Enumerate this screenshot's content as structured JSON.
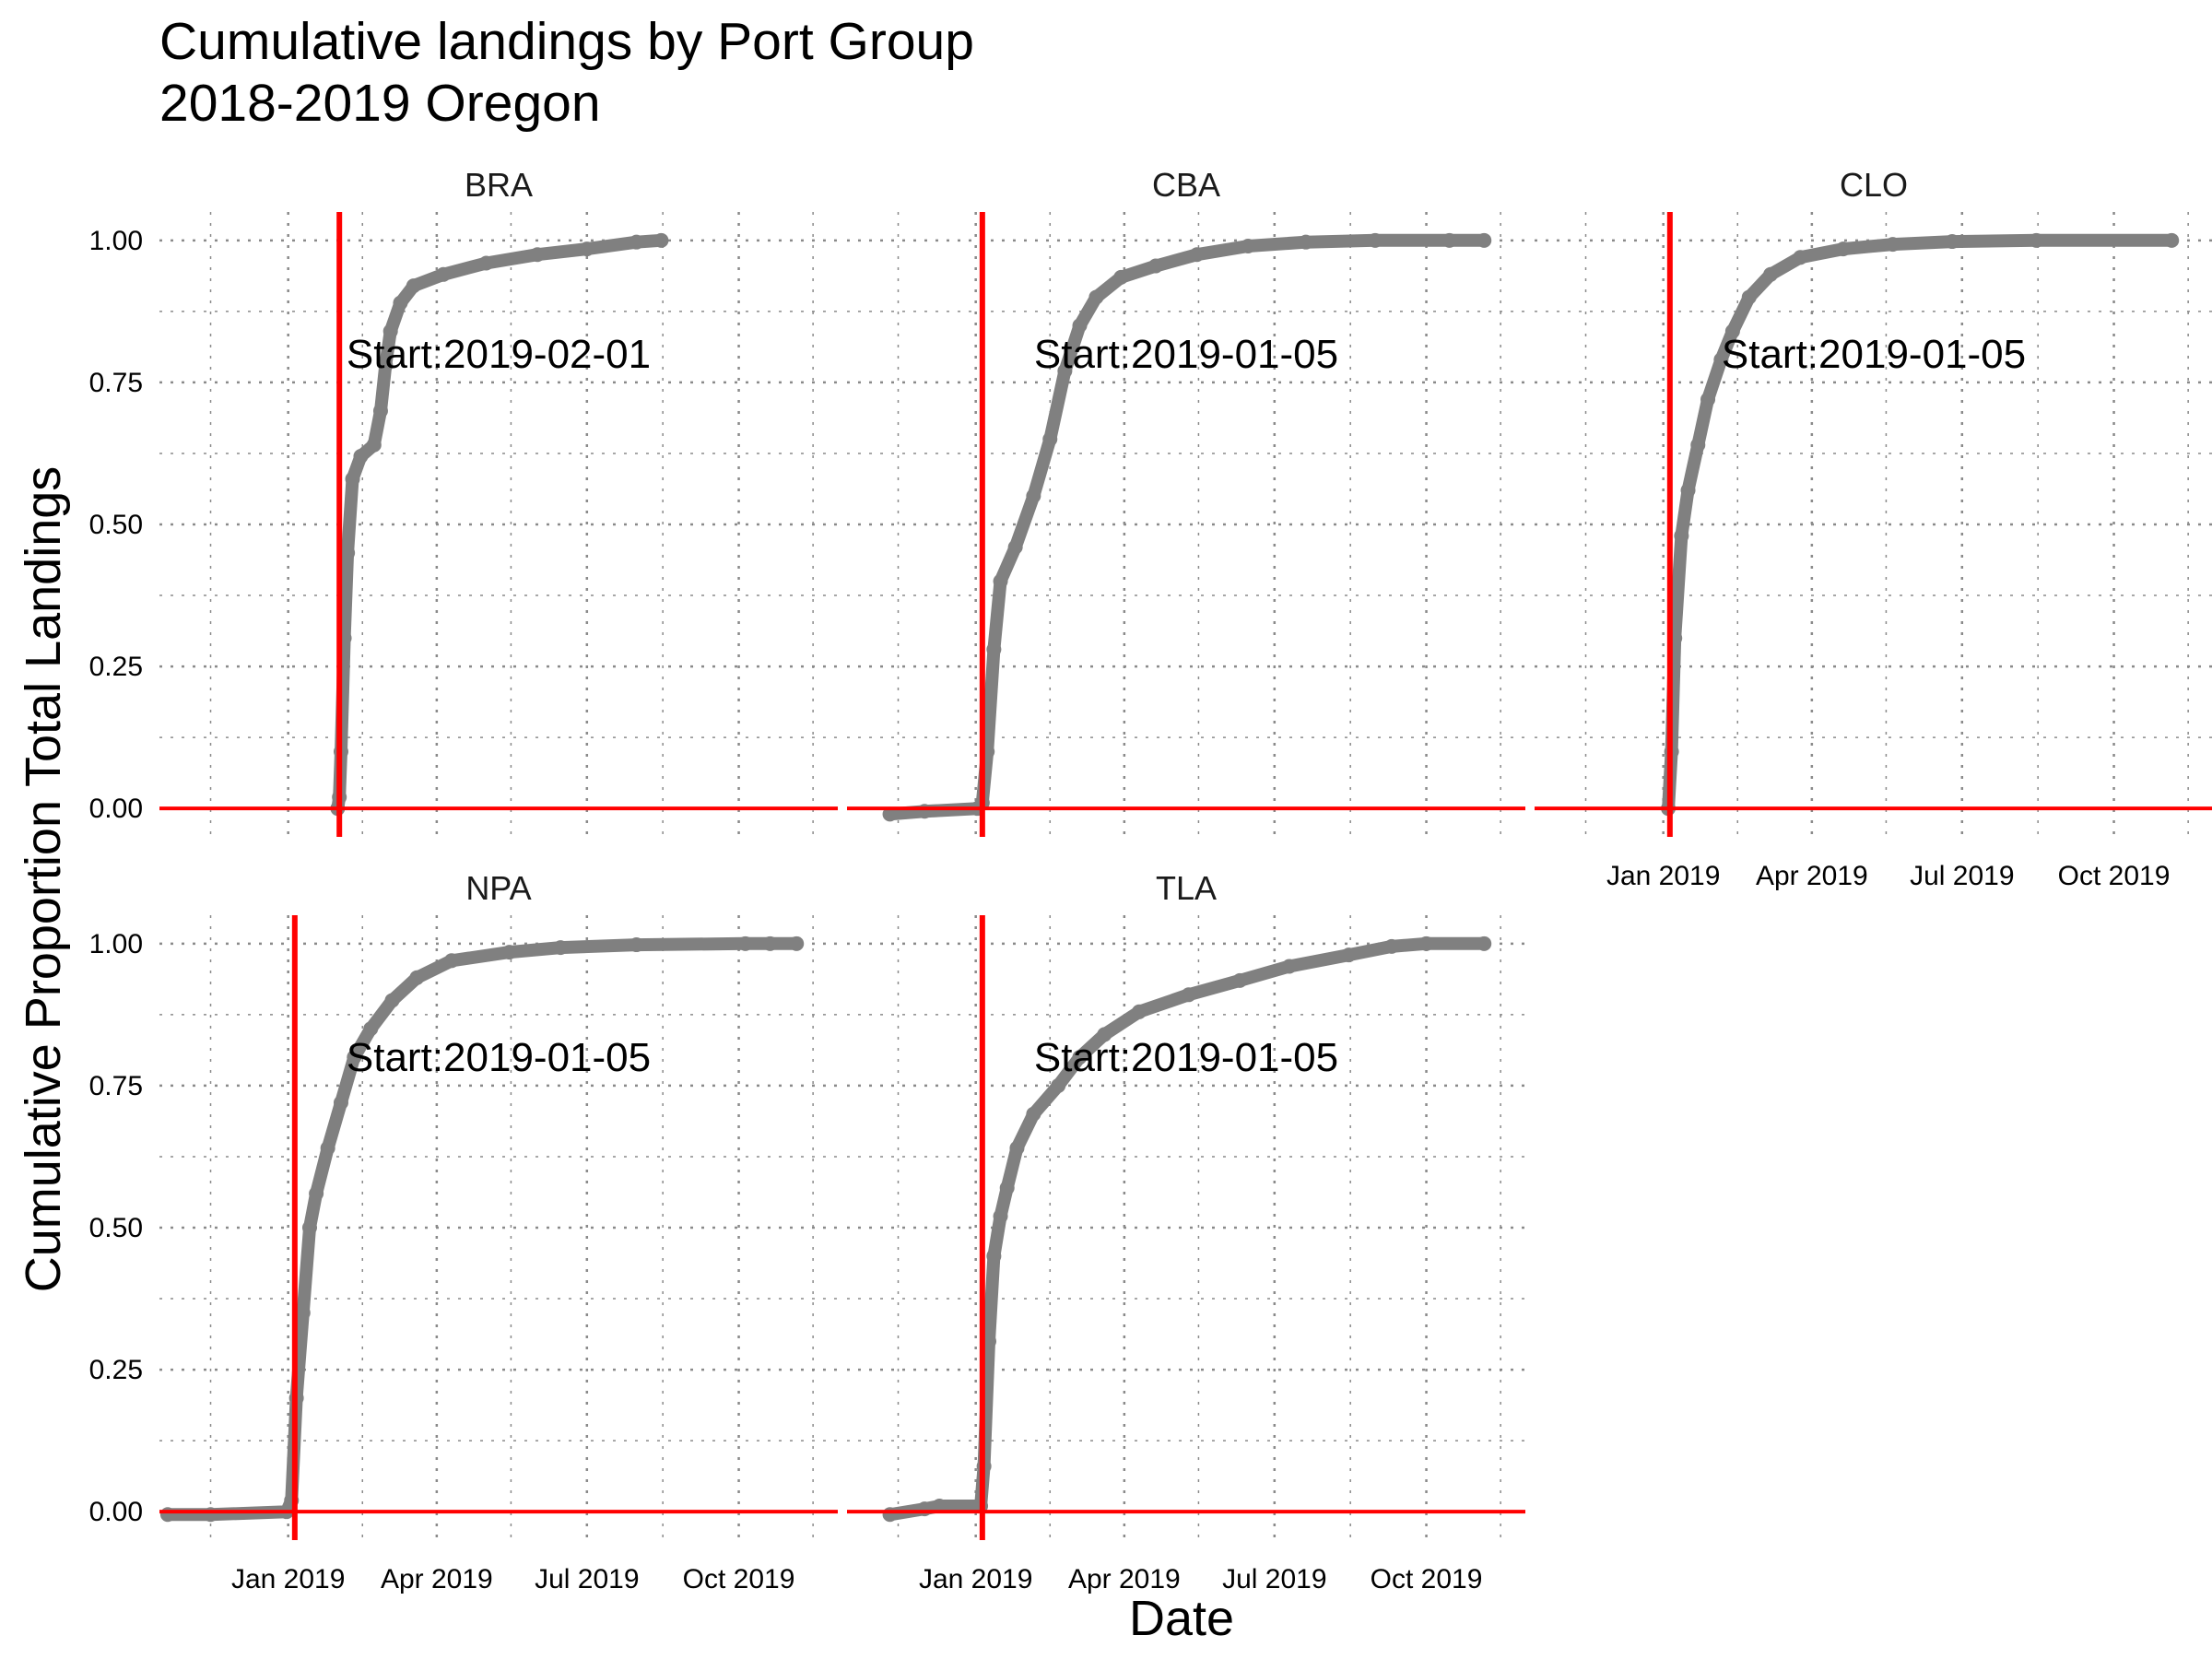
{
  "chart_data": {
    "type": "line",
    "title": "Cumulative landings by Port Group",
    "subtitle": "2018-2019 Oregon",
    "xlabel": "Date",
    "ylabel": "Cumulative Proportion Total Landings",
    "x_ticks": [
      "Jan 2019",
      "Apr 2019",
      "Jul 2019",
      "Oct 2019"
    ],
    "y_ticks": [
      "0.00",
      "0.25",
      "0.50",
      "0.75",
      "1.00"
    ],
    "ylim": [
      0,
      1
    ],
    "xlim": [
      "2018-10-15",
      "2019-11-30"
    ],
    "grid": true,
    "line_color": "#808080",
    "reference_color": "#ff0000",
    "panels": [
      {
        "name": "BRA",
        "start_label": "Start:2019-02-01",
        "start_date": "2019-02-01",
        "points": [
          [
            "2019-01-31",
            0.0
          ],
          [
            "2019-02-01",
            0.02
          ],
          [
            "2019-02-02",
            0.1
          ],
          [
            "2019-02-04",
            0.3
          ],
          [
            "2019-02-06",
            0.45
          ],
          [
            "2019-02-09",
            0.58
          ],
          [
            "2019-02-14",
            0.62
          ],
          [
            "2019-02-22",
            0.64
          ],
          [
            "2019-02-26",
            0.7
          ],
          [
            "2019-03-01",
            0.78
          ],
          [
            "2019-03-04",
            0.84
          ],
          [
            "2019-03-10",
            0.89
          ],
          [
            "2019-03-18",
            0.92
          ],
          [
            "2019-04-05",
            0.94
          ],
          [
            "2019-05-01",
            0.96
          ],
          [
            "2019-06-01",
            0.975
          ],
          [
            "2019-07-01",
            0.985
          ],
          [
            "2019-07-31",
            0.997
          ],
          [
            "2019-08-15",
            1.0
          ]
        ]
      },
      {
        "name": "CBA",
        "start_label": "Start:2019-01-05",
        "start_date": "2019-01-05",
        "points": [
          [
            "2018-11-10",
            -0.01
          ],
          [
            "2018-12-01",
            -0.005
          ],
          [
            "2019-01-02",
            0.0
          ],
          [
            "2019-01-05",
            0.01
          ],
          [
            "2019-01-08",
            0.1
          ],
          [
            "2019-01-12",
            0.28
          ],
          [
            "2019-01-16",
            0.4
          ],
          [
            "2019-01-25",
            0.46
          ],
          [
            "2019-02-05",
            0.55
          ],
          [
            "2019-02-15",
            0.65
          ],
          [
            "2019-02-24",
            0.77
          ],
          [
            "2019-03-05",
            0.85
          ],
          [
            "2019-03-15",
            0.9
          ],
          [
            "2019-03-30",
            0.935
          ],
          [
            "2019-04-20",
            0.955
          ],
          [
            "2019-05-15",
            0.975
          ],
          [
            "2019-06-15",
            0.99
          ],
          [
            "2019-07-20",
            0.997
          ],
          [
            "2019-08-31",
            1.0
          ],
          [
            "2019-10-15",
            1.0
          ],
          [
            "2019-11-05",
            1.0
          ]
        ]
      },
      {
        "name": "CLO",
        "start_label": "Start:2019-01-05",
        "start_date": "2019-01-05",
        "points": [
          [
            "2019-01-04",
            0.0
          ],
          [
            "2019-01-06",
            0.1
          ],
          [
            "2019-01-08",
            0.3
          ],
          [
            "2019-01-12",
            0.48
          ],
          [
            "2019-01-16",
            0.56
          ],
          [
            "2019-01-22",
            0.64
          ],
          [
            "2019-01-28",
            0.72
          ],
          [
            "2019-02-05",
            0.79
          ],
          [
            "2019-02-12",
            0.84
          ],
          [
            "2019-02-22",
            0.9
          ],
          [
            "2019-03-07",
            0.94
          ],
          [
            "2019-03-25",
            0.97
          ],
          [
            "2019-04-20",
            0.985
          ],
          [
            "2019-05-20",
            0.993
          ],
          [
            "2019-06-25",
            0.998
          ],
          [
            "2019-08-15",
            1.0
          ],
          [
            "2019-11-05",
            1.0
          ]
        ]
      },
      {
        "name": "NPA",
        "start_label": "Start:2019-01-05",
        "start_date": "2019-01-05",
        "points": [
          [
            "2018-10-20",
            -0.005
          ],
          [
            "2018-11-15",
            -0.005
          ],
          [
            "2018-12-31",
            0.0
          ],
          [
            "2019-01-03",
            0.02
          ],
          [
            "2019-01-06",
            0.2
          ],
          [
            "2019-01-10",
            0.35
          ],
          [
            "2019-01-14",
            0.5
          ],
          [
            "2019-01-18",
            0.56
          ],
          [
            "2019-01-25",
            0.64
          ],
          [
            "2019-02-02",
            0.72
          ],
          [
            "2019-02-10",
            0.8
          ],
          [
            "2019-02-20",
            0.85
          ],
          [
            "2019-03-05",
            0.9
          ],
          [
            "2019-03-20",
            0.94
          ],
          [
            "2019-04-10",
            0.97
          ],
          [
            "2019-05-15",
            0.985
          ],
          [
            "2019-06-15",
            0.993
          ],
          [
            "2019-07-31",
            0.998
          ],
          [
            "2019-10-05",
            1.0
          ],
          [
            "2019-10-20",
            1.0
          ],
          [
            "2019-11-05",
            1.0
          ]
        ]
      },
      {
        "name": "TLA",
        "start_label": "Start:2019-01-05",
        "start_date": "2019-01-05",
        "points": [
          [
            "2018-11-10",
            -0.005
          ],
          [
            "2018-12-01",
            0.005
          ],
          [
            "2018-12-10",
            0.01
          ],
          [
            "2019-01-04",
            0.01
          ],
          [
            "2019-01-06",
            0.08
          ],
          [
            "2019-01-09",
            0.3
          ],
          [
            "2019-01-12",
            0.45
          ],
          [
            "2019-01-16",
            0.52
          ],
          [
            "2019-01-20",
            0.57
          ],
          [
            "2019-01-26",
            0.64
          ],
          [
            "2019-02-05",
            0.7
          ],
          [
            "2019-02-20",
            0.75
          ],
          [
            "2019-03-05",
            0.8
          ],
          [
            "2019-03-20",
            0.84
          ],
          [
            "2019-04-10",
            0.88
          ],
          [
            "2019-05-10",
            0.91
          ],
          [
            "2019-06-10",
            0.935
          ],
          [
            "2019-07-10",
            0.96
          ],
          [
            "2019-08-15",
            0.98
          ],
          [
            "2019-09-10",
            0.995
          ],
          [
            "2019-10-01",
            1.0
          ],
          [
            "2019-11-05",
            1.0
          ]
        ]
      }
    ]
  }
}
